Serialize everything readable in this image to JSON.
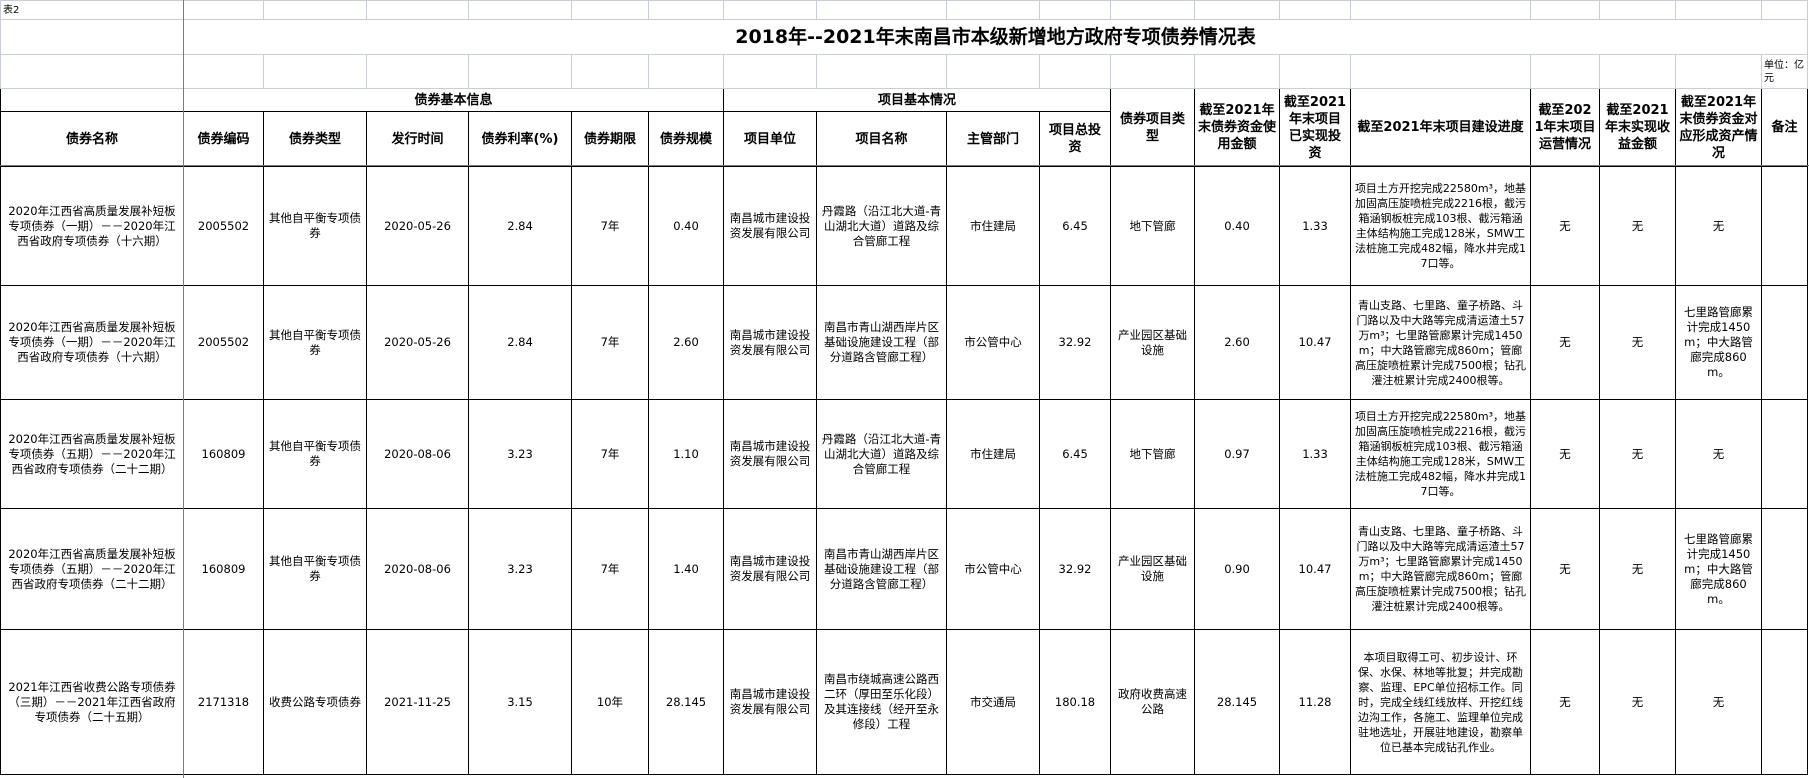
{
  "sheet": {
    "label_cell": "表2",
    "title": "2018年--2021年末南昌市本级新增地方政府专项债券情况表",
    "unit": "单位：亿元"
  },
  "groups": {
    "bond_info": "债券基本信息",
    "project_info": "项目基本情况"
  },
  "headers": [
    "债券名称",
    "债券编码",
    "债券类型",
    "发行时间",
    "债券利率(%)",
    "债券期限",
    "债券规模",
    "项目单位",
    "项目名称",
    "主管部门",
    "项目总投资",
    "债券项目类型",
    "截至2021年末债券资金使用金额",
    "截至2021年末项目已实现投资",
    "截至2021年末项目建设进度",
    "截至2021年末项目运营情况",
    "截至2021年末实现收益金额",
    "截至2021年末债券资金对应形成资产情况",
    "备注"
  ],
  "rows": [
    [
      "2020年江西省高质量发展补短板专项债券（一期）－－2020年江西省政府专项债券（十六期）",
      "2005502",
      "其他自平衡专项债券",
      "2020-05-26",
      "2.84",
      "7年",
      "0.40",
      "南昌城市建设投资发展有限公司",
      "丹霞路（沿江北大道-青山湖北大道）道路及综合管廊工程",
      "市住建局",
      "6.45",
      "地下管廊",
      "0.40",
      "1.33",
      "项目土方开挖完成22580m³，地基加固高压旋喷桩完成2216根，截污箱涵钢板桩完成103根、截污箱涵主体结构施工完成128米，SMW工法桩施工完成482幅，降水井完成17口等。",
      "无",
      "无",
      "无",
      ""
    ],
    [
      "2020年江西省高质量发展补短板专项债券（一期）－－2020年江西省政府专项债券（十六期）",
      "2005502",
      "其他自平衡专项债券",
      "2020-05-26",
      "2.84",
      "7年",
      "2.60",
      "南昌城市建设投资发展有限公司",
      "南昌市青山湖西岸片区基础设施建设工程（部分道路含管廊工程）",
      "市公管中心",
      "32.92",
      "产业园区基础设施",
      "2.60",
      "10.47",
      "青山支路、七里路、童子桥路、斗门路以及中大路等完成清运渣土57万m³；七里路管廊累计完成1450m；中大路管廊完成860m；管廊高压旋喷桩累计完成7500根；钻孔灌注桩累计完成2400根等。",
      "无",
      "无",
      "七里路管廊累计完成1450m；中大路管廊完成860m。",
      ""
    ],
    [
      "2020年江西省高质量发展补短板专项债券（五期）－－2020年江西省政府专项债券（二十二期）",
      "160809",
      "其他自平衡专项债券",
      "2020-08-06",
      "3.23",
      "7年",
      "1.10",
      "南昌城市建设投资发展有限公司",
      "丹霞路（沿江北大道-青山湖北大道）道路及综合管廊工程",
      "市住建局",
      "6.45",
      "地下管廊",
      "0.97",
      "1.33",
      "项目土方开挖完成22580m³，地基加固高压旋喷桩完成2216根，截污箱涵钢板桩完成103根、截污箱涵主体结构施工完成128米，SMW工法桩施工完成482幅，降水井完成17口等。",
      "无",
      "无",
      "无",
      ""
    ],
    [
      "2020年江西省高质量发展补短板专项债券（五期）－－2020年江西省政府专项债券（二十二期）",
      "160809",
      "其他自平衡专项债券",
      "2020-08-06",
      "3.23",
      "7年",
      "1.40",
      "南昌城市建设投资发展有限公司",
      "南昌市青山湖西岸片区基础设施建设工程（部分道路含管廊工程）",
      "市公管中心",
      "32.92",
      "产业园区基础设施",
      "0.90",
      "10.47",
      "青山支路、七里路、童子桥路、斗门路以及中大路等完成清运渣土57万m³；七里路管廊累计完成1450m；中大路管廊完成860m；管廊高压旋喷桩累计完成7500根；钻孔灌注桩累计完成2400根等。",
      "无",
      "无",
      "七里路管廊累计完成1450m；中大路管廊完成860m。",
      ""
    ],
    [
      "2021年江西省收费公路专项债券（三期）－－2021年江西省政府专项债券（二十五期）",
      "2171318",
      "收费公路专项债券",
      "2021-11-25",
      "3.15",
      "10年",
      "28.145",
      "南昌城市建设投资发展有限公司",
      "南昌市绕城高速公路西二环（厚田至乐化段）及其连接线（经开至永修段）工程",
      "市交通局",
      "180.18",
      "政府收费高速公路",
      "28.145",
      "11.28",
      "本项目取得工可、初步设计、环保、水保、林地等批复；并完成勘察、监理、EPC单位招标工作。同时，完成全线红线放样、开挖红线边沟工作，各施工、监理单位完成驻地选址，开展驻地建设，勘察单位已基本完成钻孔作业。",
      "无",
      "无",
      "无",
      ""
    ]
  ]
}
